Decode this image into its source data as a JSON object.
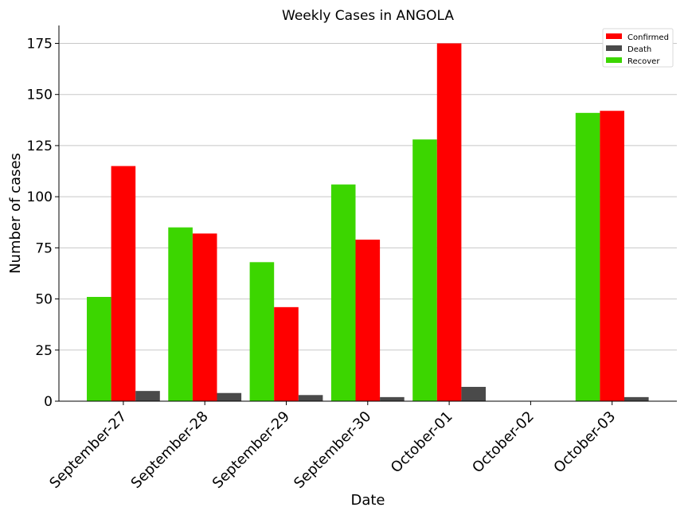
{
  "chart_data": {
    "type": "bar",
    "title": "Weekly Cases in ANGOLA",
    "xlabel": "Date",
    "ylabel": "Number of cases",
    "categories": [
      "September-27",
      "September-28",
      "September-29",
      "September-30",
      "October-01",
      "October-02",
      "October-03"
    ],
    "series": [
      {
        "name": "Recover",
        "color": "#3cd600",
        "values": [
          51,
          85,
          68,
          106,
          128,
          0,
          141
        ]
      },
      {
        "name": "Confirmed",
        "color": "#ff0000",
        "values": [
          115,
          82,
          46,
          79,
          175,
          0,
          142
        ]
      },
      {
        "name": "Death",
        "color": "#4a4a4a",
        "values": [
          5,
          4,
          3,
          2,
          7,
          0,
          2
        ]
      }
    ],
    "legend_order": [
      "Confirmed",
      "Death",
      "Recover"
    ],
    "legend_position": "top-right",
    "ylim": [
      0,
      183.75
    ],
    "yticks": [
      0,
      25,
      50,
      75,
      100,
      125,
      150,
      175
    ],
    "grid": "horizontal"
  }
}
